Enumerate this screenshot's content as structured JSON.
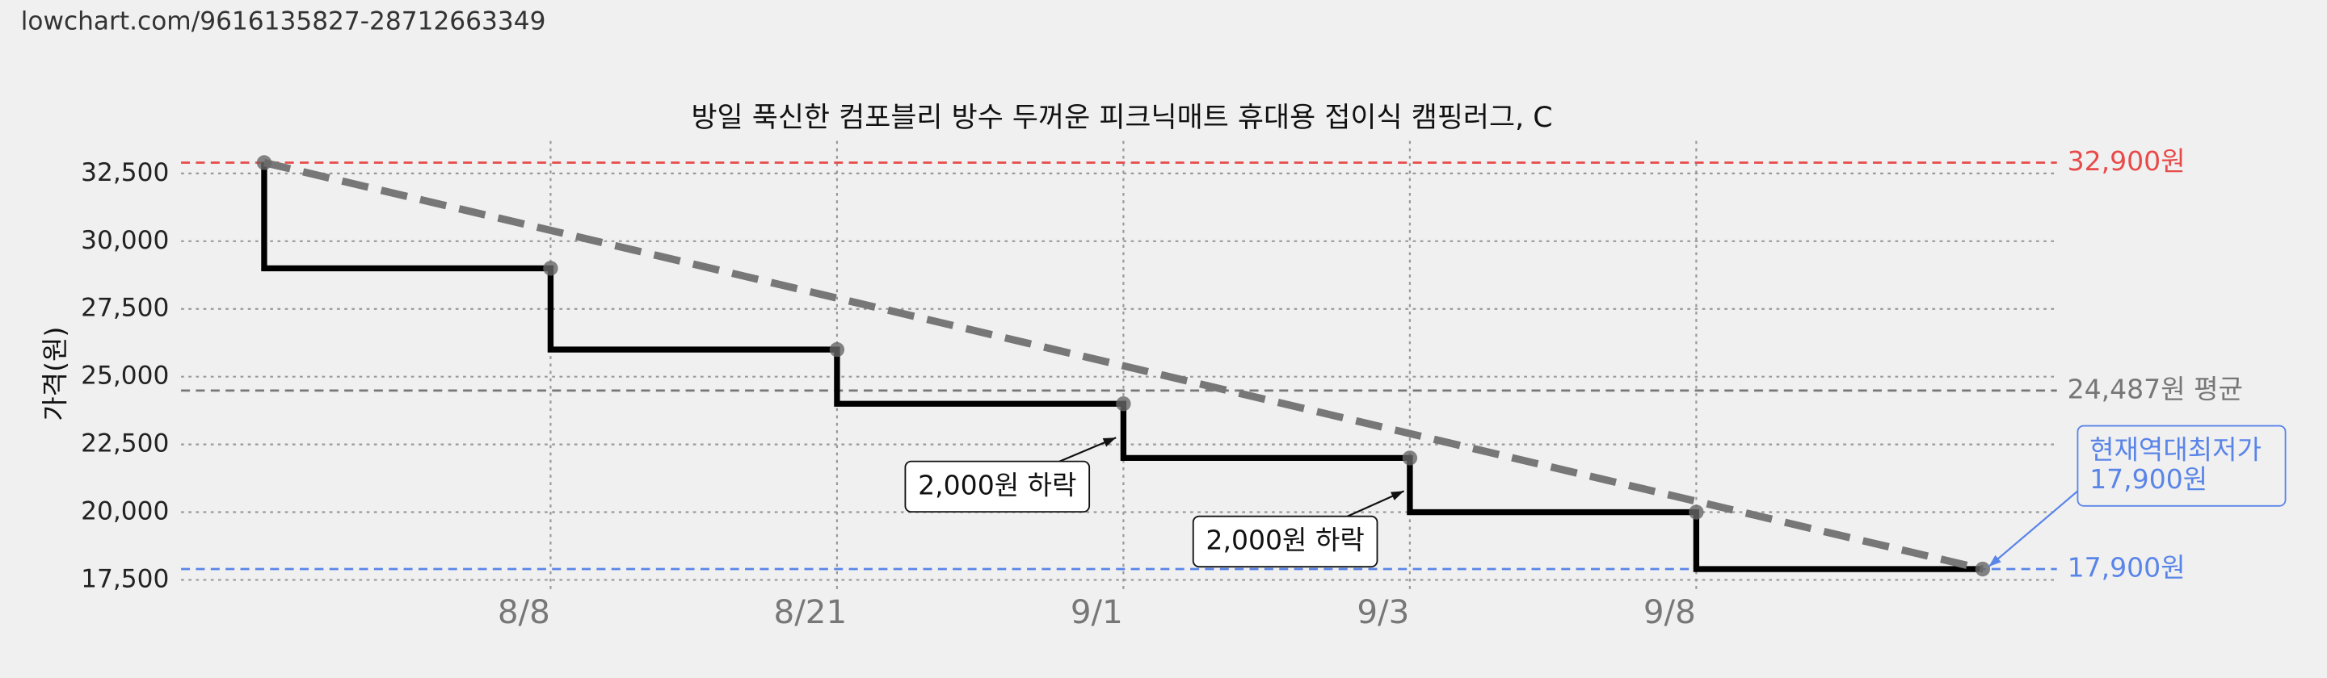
{
  "header": {
    "url": "lowchart.com/9616135827-28712663349"
  },
  "chart_data": {
    "type": "step-line",
    "title": "방일 푹신한 컴포블리 방수 두꺼운 피크닉매트 휴대용 접이식 캠핑러그, C",
    "y_label": "가격(원)",
    "categories": [
      null,
      "8/8",
      "8/21",
      "9/1",
      "9/3",
      "9/8",
      null
    ],
    "values": [
      32900,
      29000,
      26000,
      24000,
      22000,
      20000,
      17900
    ],
    "color": "#000000",
    "trend_color": "#777777",
    "ylim": [
      17000,
      33700
    ],
    "yticks": [
      {
        "value": 17500,
        "label": "17,500"
      },
      {
        "value": 20000,
        "label": "20,000"
      },
      {
        "value": 22500,
        "label": "22,500"
      },
      {
        "value": 25000,
        "label": "25,000"
      },
      {
        "value": 27500,
        "label": "27,500"
      },
      {
        "value": 30000,
        "label": "30,000"
      },
      {
        "value": 32500,
        "label": "32,500"
      }
    ],
    "grid": true,
    "reference_lines": [
      {
        "value": 32900,
        "label": "32,900원",
        "color": "#e84a4a"
      },
      {
        "value": 24487,
        "label": "24,487원 평균",
        "color": "#777777"
      },
      {
        "value": 17900,
        "label": "17,900원",
        "color": "#5a85e8"
      }
    ],
    "annotations": [
      {
        "lines": [
          "2,000원 하락"
        ]
      },
      {
        "lines": [
          "2,000원 하락"
        ]
      },
      {
        "lines": [
          "현재역대최저가",
          "17,900원"
        ]
      }
    ]
  }
}
